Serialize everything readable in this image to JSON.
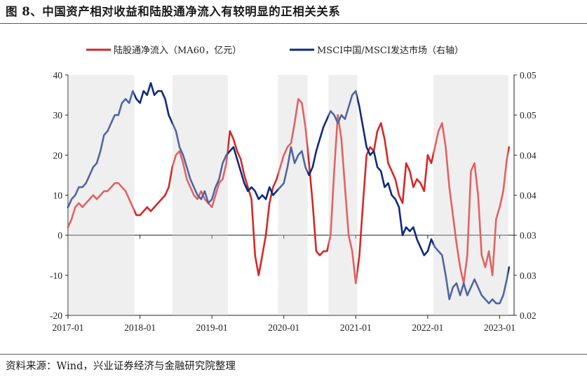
{
  "figure": {
    "title": "图 8、中国资产相对收益和陆股通净流入有较明显的正相关关系",
    "source": "资料来源：Wind，兴业证券经济与金融研究院整理"
  },
  "chart_data": {
    "type": "line",
    "legend": {
      "placement": "top-center",
      "entries": [
        "陆股通净流入（MA60，亿元）",
        "MSCI中国/MSCI发达市场（右轴）"
      ]
    },
    "x_axis": {
      "ticks": [
        "2017-01",
        "2018-01",
        "2019-01",
        "2020-01",
        "2021-01",
        "2022-01",
        "2023-01"
      ],
      "range": [
        2017.0,
        2023.2
      ]
    },
    "y_left": {
      "ticks": [
        "-20",
        "-10",
        "0",
        "10",
        "20",
        "30",
        "40"
      ],
      "ylim": [
        -20,
        40
      ]
    },
    "y_right": {
      "ticks": [
        "0.02",
        "0.03",
        "0.03",
        "0.04",
        "0.04",
        "0.05",
        "0.05"
      ],
      "ylim": [
        0.02,
        0.05
      ]
    },
    "shaded_periods": [
      [
        2017.0,
        2017.92
      ],
      [
        2018.45,
        2019.22
      ],
      [
        2019.92,
        2020.33
      ],
      [
        2020.62,
        2021.02
      ],
      [
        2022.08,
        2023.12
      ]
    ],
    "series": [
      {
        "name": "陆股通净流入（MA60，亿元）",
        "axis": "left",
        "color": "#d62728",
        "x": [
          2017.0,
          2017.05,
          2017.1,
          2017.15,
          2017.2,
          2017.25,
          2017.3,
          2017.35,
          2017.4,
          2017.45,
          2017.5,
          2017.55,
          2017.6,
          2017.65,
          2017.7,
          2017.75,
          2017.8,
          2017.85,
          2017.9,
          2017.95,
          2018.0,
          2018.05,
          2018.1,
          2018.15,
          2018.2,
          2018.25,
          2018.3,
          2018.35,
          2018.4,
          2018.45,
          2018.5,
          2018.55,
          2018.6,
          2018.65,
          2018.7,
          2018.75,
          2018.8,
          2018.85,
          2018.9,
          2018.95,
          2019.0,
          2019.05,
          2019.1,
          2019.15,
          2019.2,
          2019.25,
          2019.3,
          2019.35,
          2019.4,
          2019.45,
          2019.5,
          2019.55,
          2019.6,
          2019.65,
          2019.7,
          2019.75,
          2019.8,
          2019.85,
          2019.9,
          2019.95,
          2020.0,
          2020.05,
          2020.1,
          2020.15,
          2020.2,
          2020.25,
          2020.3,
          2020.35,
          2020.4,
          2020.45,
          2020.5,
          2020.55,
          2020.6,
          2020.65,
          2020.7,
          2020.75,
          2020.8,
          2020.85,
          2020.9,
          2020.95,
          2021.0,
          2021.05,
          2021.1,
          2021.15,
          2021.2,
          2021.25,
          2021.3,
          2021.35,
          2021.4,
          2021.45,
          2021.5,
          2021.55,
          2021.6,
          2021.65,
          2021.7,
          2021.75,
          2021.8,
          2021.85,
          2021.9,
          2021.95,
          2022.0,
          2022.05,
          2022.1,
          2022.15,
          2022.2,
          2022.25,
          2022.3,
          2022.35,
          2022.4,
          2022.45,
          2022.5,
          2022.55,
          2022.6,
          2022.65,
          2022.7,
          2022.75,
          2022.8,
          2022.85,
          2022.9,
          2022.95,
          2023.0,
          2023.05,
          2023.1,
          2023.13
        ],
        "values": [
          2,
          4,
          7,
          8,
          7,
          8,
          9,
          10,
          9,
          10,
          11,
          11,
          12,
          13,
          13,
          12,
          11,
          9,
          7,
          5,
          5,
          6,
          7,
          6,
          7,
          8,
          9,
          10,
          12,
          17,
          20,
          21,
          18,
          14,
          12,
          10,
          9,
          11,
          9,
          8,
          7,
          10,
          13,
          14,
          18,
          26,
          24,
          21,
          19,
          15,
          12,
          9,
          -5,
          -10,
          -5,
          0,
          8,
          12,
          14,
          17,
          20,
          22,
          23,
          28,
          34,
          33,
          27,
          18,
          8,
          -4,
          -5,
          -4,
          -4,
          0,
          16,
          30,
          24,
          12,
          0,
          -4,
          -12,
          -5,
          8,
          20,
          22,
          21,
          26,
          28,
          24,
          18,
          16,
          14,
          10,
          8,
          18,
          16,
          12,
          14,
          13,
          11,
          20,
          18,
          22,
          26,
          28,
          22,
          12,
          5,
          -2,
          -8,
          -12,
          -5,
          16,
          18,
          10,
          -5,
          -8,
          -4,
          -10,
          4,
          7,
          11,
          19,
          22
        ]
      },
      {
        "name": "MSCI中国/MSCI发达市场（右轴）",
        "axis": "right",
        "color": "#0d2b7d",
        "x": [
          2017.0,
          2017.05,
          2017.1,
          2017.15,
          2017.2,
          2017.25,
          2017.3,
          2017.35,
          2017.4,
          2017.45,
          2017.5,
          2017.55,
          2017.6,
          2017.65,
          2017.7,
          2017.75,
          2017.8,
          2017.85,
          2017.9,
          2017.95,
          2018.0,
          2018.05,
          2018.1,
          2018.15,
          2018.2,
          2018.25,
          2018.3,
          2018.35,
          2018.4,
          2018.45,
          2018.5,
          2018.55,
          2018.6,
          2018.65,
          2018.7,
          2018.75,
          2018.8,
          2018.85,
          2018.9,
          2018.95,
          2019.0,
          2019.05,
          2019.1,
          2019.15,
          2019.2,
          2019.25,
          2019.3,
          2019.35,
          2019.4,
          2019.45,
          2019.5,
          2019.55,
          2019.6,
          2019.65,
          2019.7,
          2019.75,
          2019.8,
          2019.85,
          2019.9,
          2019.95,
          2020.0,
          2020.05,
          2020.1,
          2020.15,
          2020.2,
          2020.25,
          2020.3,
          2020.35,
          2020.4,
          2020.45,
          2020.5,
          2020.55,
          2020.6,
          2020.65,
          2020.7,
          2020.75,
          2020.8,
          2020.85,
          2020.9,
          2020.95,
          2021.0,
          2021.05,
          2021.1,
          2021.15,
          2021.2,
          2021.25,
          2021.3,
          2021.35,
          2021.4,
          2021.45,
          2021.5,
          2021.55,
          2021.6,
          2021.65,
          2021.7,
          2021.75,
          2021.8,
          2021.85,
          2021.9,
          2021.95,
          2022.0,
          2022.05,
          2022.1,
          2022.15,
          2022.2,
          2022.25,
          2022.3,
          2022.35,
          2022.4,
          2022.45,
          2022.5,
          2022.55,
          2022.6,
          2022.65,
          2022.7,
          2022.75,
          2022.8,
          2022.85,
          2022.9,
          2022.95,
          2023.0,
          2023.05,
          2023.1,
          2023.13
        ],
        "values": [
          0.0335,
          0.0345,
          0.035,
          0.036,
          0.036,
          0.0365,
          0.0375,
          0.0385,
          0.039,
          0.0405,
          0.0425,
          0.043,
          0.044,
          0.045,
          0.045,
          0.0465,
          0.047,
          0.0465,
          0.048,
          0.047,
          0.0465,
          0.048,
          0.0475,
          0.049,
          0.0475,
          0.048,
          0.048,
          0.047,
          0.045,
          0.044,
          0.043,
          0.041,
          0.04,
          0.0385,
          0.037,
          0.036,
          0.035,
          0.0345,
          0.0355,
          0.034,
          0.0345,
          0.036,
          0.037,
          0.039,
          0.04,
          0.0405,
          0.041,
          0.0395,
          0.038,
          0.0365,
          0.0355,
          0.036,
          0.0355,
          0.0345,
          0.035,
          0.0345,
          0.036,
          0.035,
          0.0355,
          0.036,
          0.0365,
          0.0385,
          0.041,
          0.039,
          0.04,
          0.0405,
          0.0385,
          0.0375,
          0.0385,
          0.0405,
          0.042,
          0.0435,
          0.0445,
          0.0455,
          0.045,
          0.044,
          0.045,
          0.0445,
          0.046,
          0.0475,
          0.048,
          0.046,
          0.0435,
          0.041,
          0.04,
          0.0405,
          0.0385,
          0.038,
          0.036,
          0.0365,
          0.035,
          0.0345,
          0.0335,
          0.03,
          0.031,
          0.0305,
          0.031,
          0.0295,
          0.0285,
          0.0275,
          0.028,
          0.0295,
          0.0285,
          0.028,
          0.0275,
          0.025,
          0.022,
          0.0235,
          0.024,
          0.0225,
          0.024,
          0.0225,
          0.0235,
          0.0245,
          0.0235,
          0.0225,
          0.022,
          0.0215,
          0.022,
          0.0215,
          0.0215,
          0.0225,
          0.0245,
          0.026
        ]
      }
    ]
  }
}
